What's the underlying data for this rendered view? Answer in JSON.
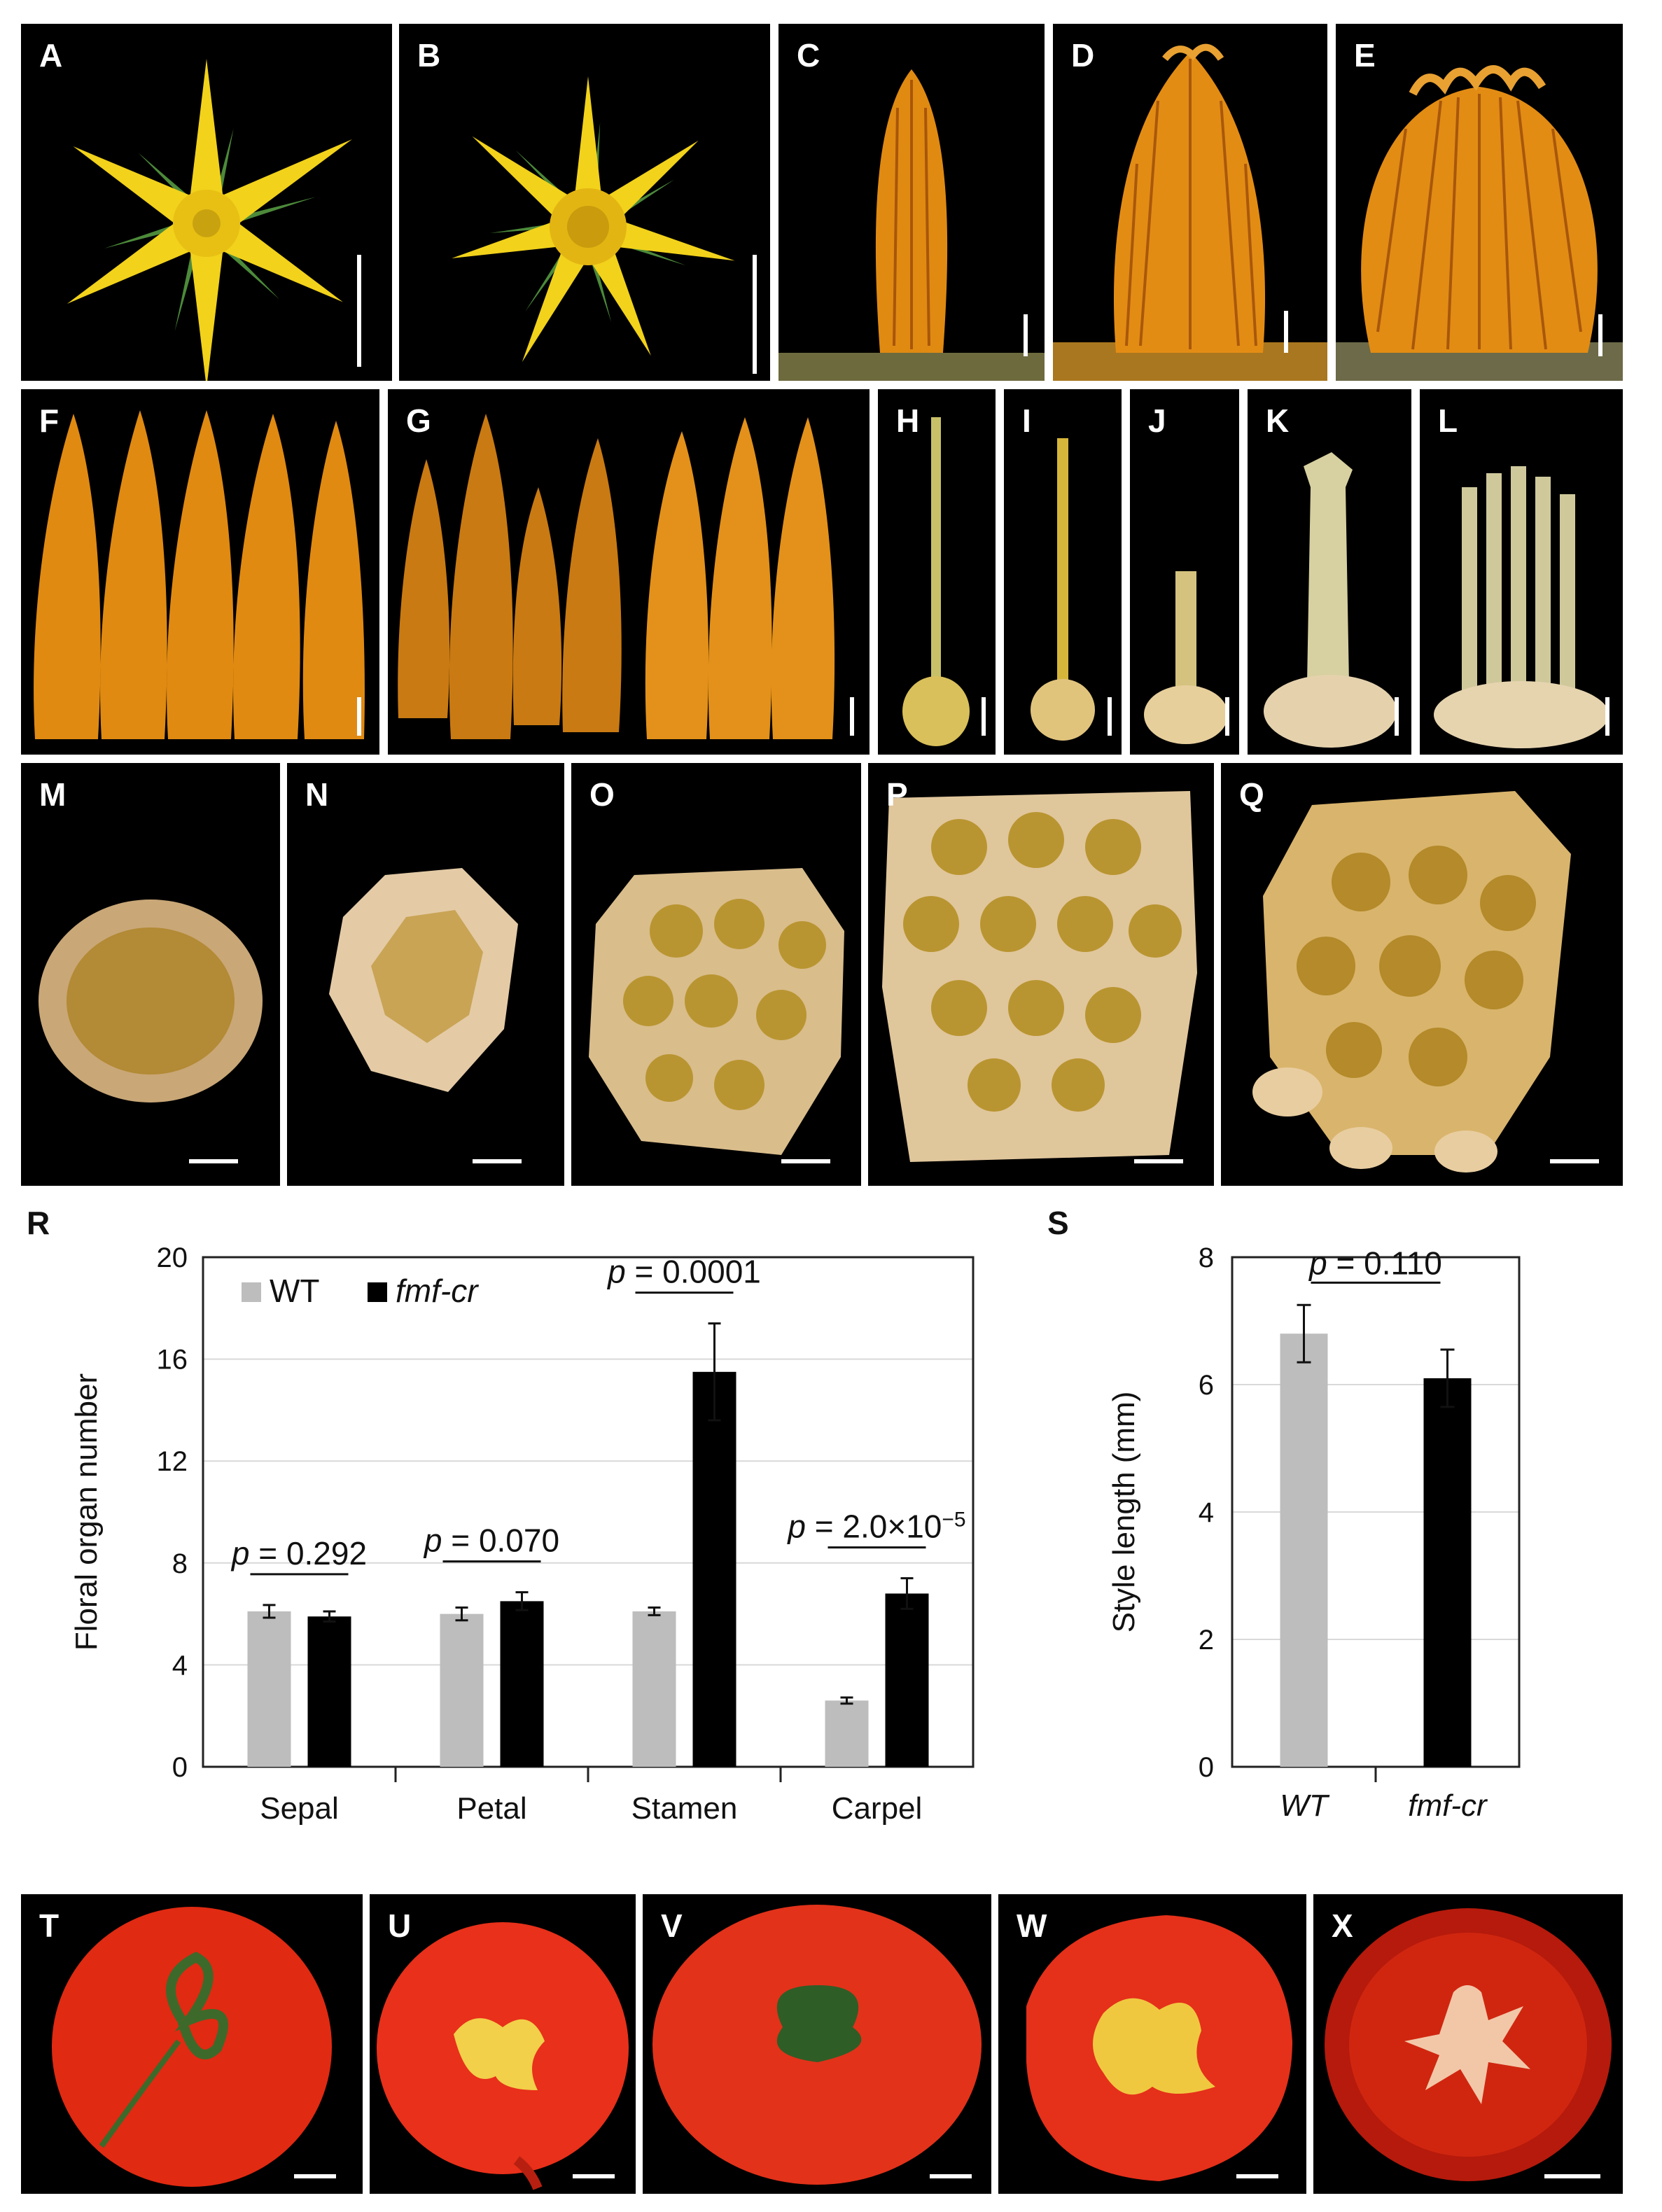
{
  "figure": {
    "panel_labels": [
      "A",
      "B",
      "C",
      "D",
      "E",
      "F",
      "G",
      "H",
      "I",
      "J",
      "K",
      "L",
      "M",
      "N",
      "O",
      "P",
      "Q",
      "T",
      "U",
      "V",
      "W",
      "X"
    ],
    "chart_labels": [
      "R",
      "S"
    ],
    "colors": {
      "wt": "#bdbdbd",
      "mutant": "#000000",
      "flower_yellow": "#f2d21b",
      "sepal_green": "#4c8a3a",
      "bud_orange": "#e08a12",
      "carpel_cream": "#d9b777",
      "fruit_red": "#e02a12"
    }
  },
  "chart_data": [
    {
      "id": "R",
      "type": "bar",
      "categories": [
        "Sepal",
        "Petal",
        "Stamen",
        "Carpel"
      ],
      "series": [
        {
          "name": "WT",
          "values": [
            6.1,
            6.0,
            6.1,
            2.6
          ],
          "errors": [
            0.25,
            0.25,
            0.15,
            0.12
          ]
        },
        {
          "name": "fmf-cr",
          "values": [
            5.9,
            6.5,
            15.5,
            6.8
          ],
          "errors": [
            0.2,
            0.35,
            1.9,
            0.6
          ]
        }
      ],
      "xlabel": "",
      "ylabel": "Floral organ number",
      "ylim": [
        0,
        20
      ],
      "yticks": [
        "0",
        "4",
        "8",
        "12",
        "16",
        "20"
      ],
      "grid": true,
      "legend": "top-left",
      "annotations": [
        {
          "prefix": "p",
          "text": " = 0.292",
          "category": "Sepal"
        },
        {
          "prefix": "p",
          "text": " = 0.070",
          "category": "Petal"
        },
        {
          "prefix": "p",
          "text": " = 0.0001",
          "category": "Stamen"
        },
        {
          "prefix": "p",
          "text": " = 2.0×10",
          "sup": "−5",
          "category": "Carpel"
        }
      ]
    },
    {
      "id": "S",
      "type": "bar",
      "categories": [
        "WT",
        "fmf-cr"
      ],
      "values": [
        6.8,
        6.1
      ],
      "errors": [
        0.45,
        0.45
      ],
      "xlabel": "",
      "ylabel": "Style length (mm)",
      "ylim": [
        0,
        8
      ],
      "yticks": [
        "0",
        "2",
        "4",
        "6",
        "8"
      ],
      "grid": true,
      "annotations": [
        {
          "prefix": "p",
          "text": " = 0.110"
        }
      ]
    }
  ]
}
